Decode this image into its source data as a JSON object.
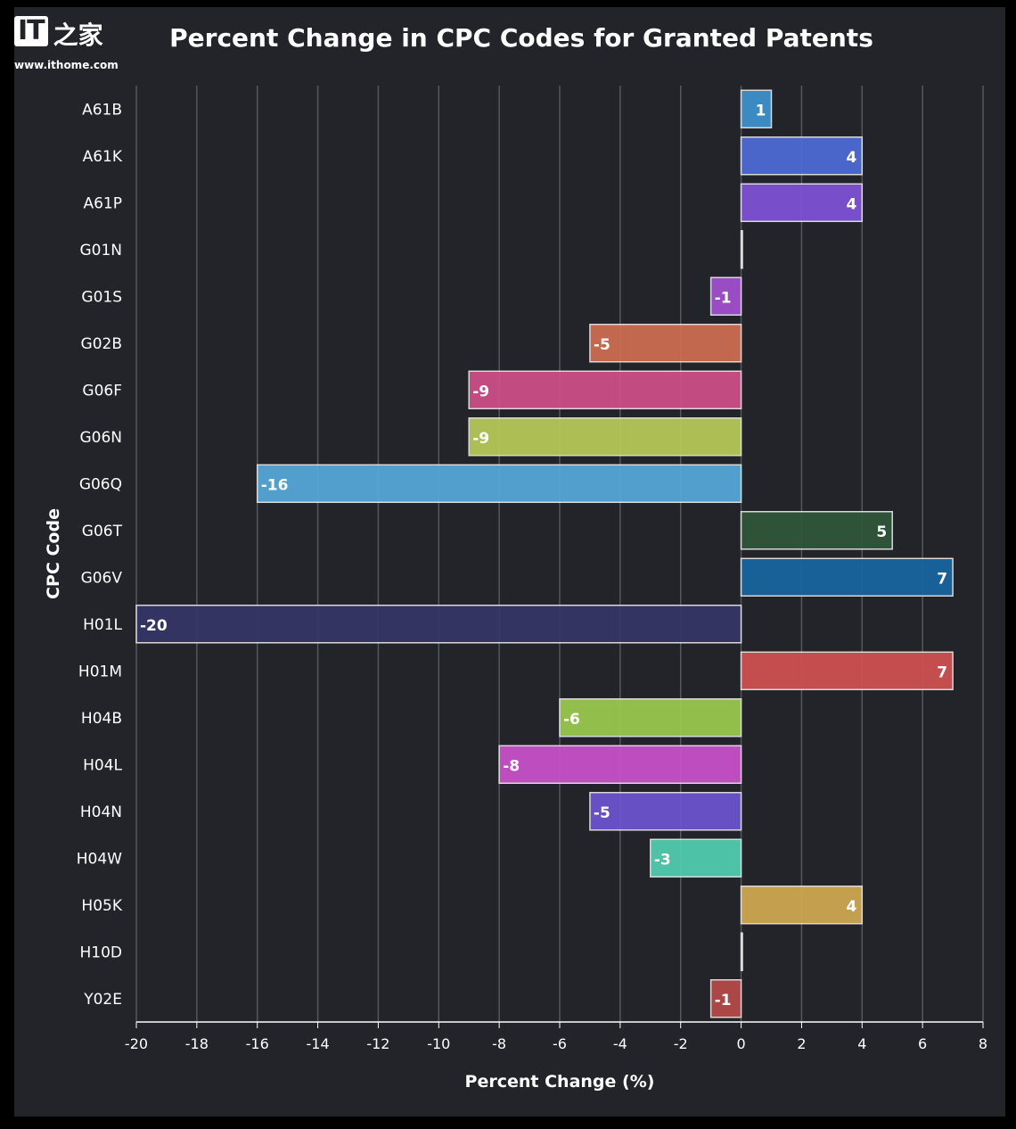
{
  "logo": {
    "brand": "IT之家",
    "url": "www.ithome.com"
  },
  "chart_data": {
    "type": "bar",
    "orientation": "horizontal",
    "title": "Percent Change in CPC Codes for Granted Patents",
    "xlabel": "Percent Change (%)",
    "ylabel": "CPC Code",
    "xlim": [
      -20,
      8
    ],
    "xticks": [
      -20,
      -18,
      -16,
      -14,
      -12,
      -10,
      -8,
      -6,
      -4,
      -2,
      0,
      2,
      4,
      6,
      8
    ],
    "grid": "vertical",
    "categories": [
      "A61B",
      "A61K",
      "A61P",
      "G01N",
      "G01S",
      "G02B",
      "G06F",
      "G06N",
      "G06Q",
      "G06T",
      "G06V",
      "H01L",
      "H01M",
      "H04B",
      "H04L",
      "H04N",
      "H04W",
      "H05K",
      "H10D",
      "Y02E"
    ],
    "values": [
      1,
      4,
      4,
      0,
      -1,
      -5,
      -9,
      -9,
      -16,
      5,
      7,
      -20,
      7,
      -6,
      -8,
      -5,
      -3,
      4,
      0,
      -1
    ],
    "data_labels": [
      "1",
      "4",
      "4",
      "",
      "-1",
      "-5",
      "-9",
      "-9",
      "-16",
      "5",
      "7",
      "-20",
      "7",
      "-6",
      "-8",
      "-5",
      "-3",
      "4",
      "",
      "-1"
    ],
    "colors": [
      "#3e93d0",
      "#4f6cd8",
      "#8052d8",
      "#cccccc",
      "#a450d2",
      "#d06e52",
      "#d0508a",
      "#b8cc58",
      "#56aadc",
      "#2f583a",
      "#1666a2",
      "#363668",
      "#d25252",
      "#9ccc50",
      "#cc52cc",
      "#6c54d2",
      "#52d0b2",
      "#d2aa52",
      "#cccccc",
      "#b84a4a"
    ]
  }
}
